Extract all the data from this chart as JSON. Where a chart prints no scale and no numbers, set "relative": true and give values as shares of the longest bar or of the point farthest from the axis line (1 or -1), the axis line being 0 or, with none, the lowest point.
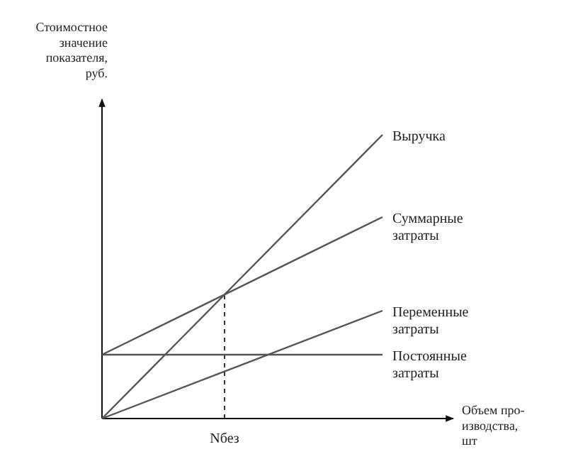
{
  "chart_data": {
    "type": "line",
    "relative": true,
    "ylabel": "Стоимостное\nзначение\nпоказателя,\nруб.",
    "xlabel": "Объем про-\nизводства,\nшт",
    "categories": [
      null,
      null
    ],
    "marker": "none",
    "line_style": "solid",
    "series": [
      {
        "name": "Выручка",
        "color": "#555555",
        "values": [
          0,
          1
        ]
      },
      {
        "name": "Суммарные\nзатраты",
        "color": "#555555",
        "values": [
          0.225,
          0.71
        ]
      },
      {
        "name": "Переменные\nзатраты",
        "color": "#555555",
        "values": [
          0,
          0.38
        ]
      },
      {
        "name": "Постоянные\nзатраты",
        "color": "#555555",
        "values": [
          0.225,
          0.225
        ]
      }
    ],
    "annotations": [
      "Nбез"
    ]
  }
}
